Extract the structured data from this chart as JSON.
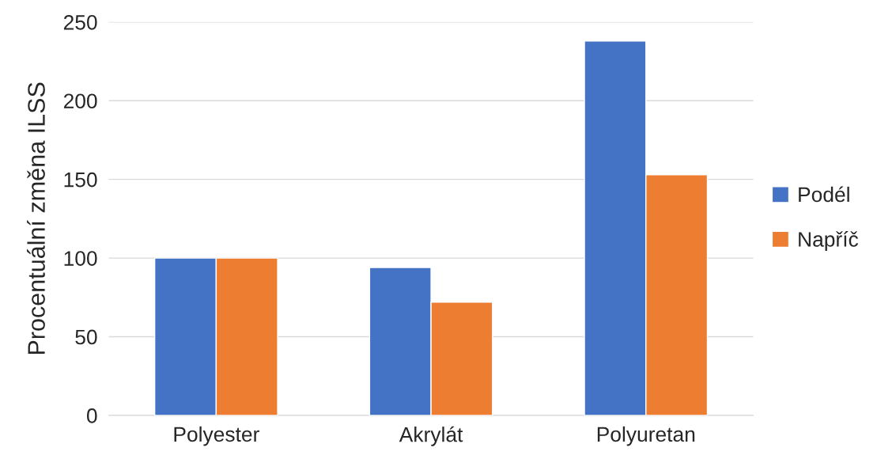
{
  "chart_data": {
    "type": "bar",
    "ylabel": "Procentuální změna ILSS",
    "categories": [
      "Polyester",
      "Akrylát",
      "Polyuretan"
    ],
    "series": [
      {
        "name": "Podél",
        "color": "#4472c4",
        "values": [
          100,
          94,
          238
        ]
      },
      {
        "name": "Napříč",
        "color": "#ed7d31",
        "values": [
          100,
          72,
          153
        ]
      }
    ],
    "ylim": [
      0,
      250
    ],
    "yticks": [
      0,
      50,
      100,
      150,
      200,
      250
    ],
    "grid": "y",
    "legend": "right"
  }
}
